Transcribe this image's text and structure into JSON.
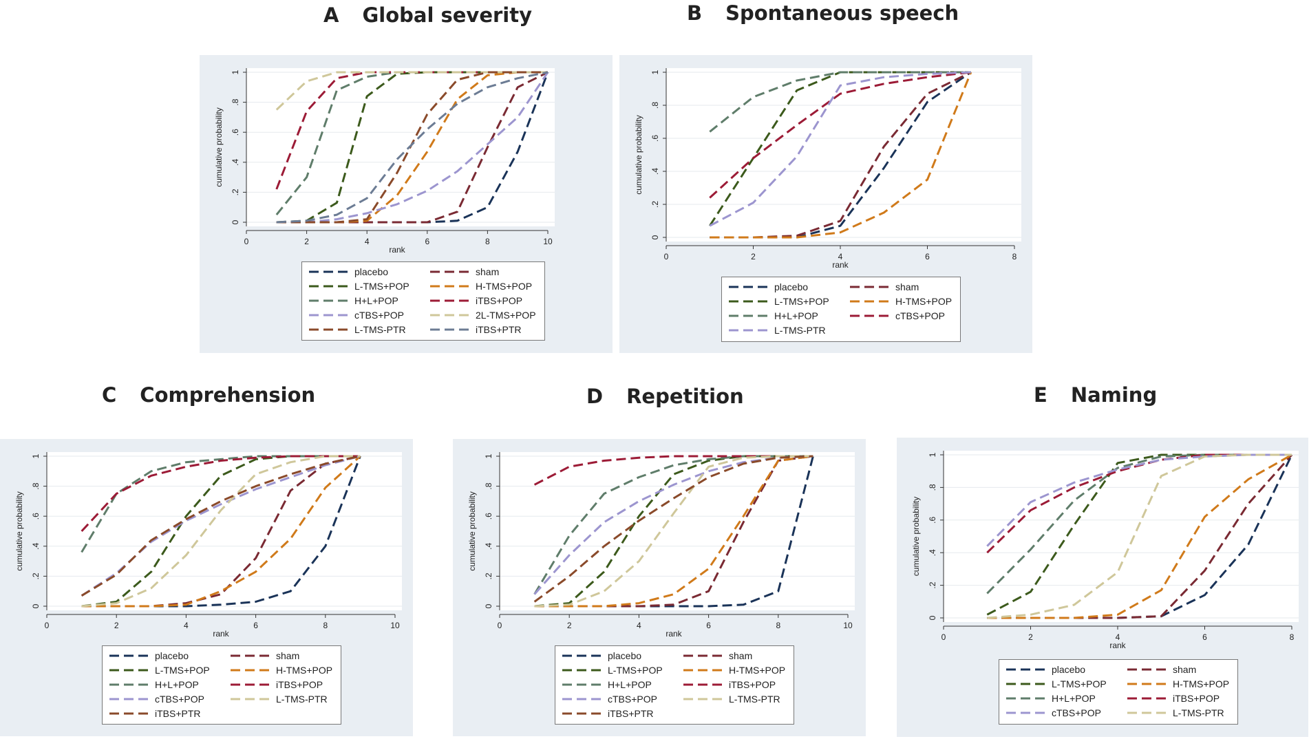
{
  "colors": {
    "placebo": "#1a3358",
    "sham": "#7a2a33",
    "L-TMS+POP": "#3c5a1c",
    "H-TMS+POP": "#d07a1a",
    "H+L+POP": "#5f7d6a",
    "iTBS+POP": "#9c1b36",
    "cTBS+POP": "#9c95cf",
    "2L-TMS+POP": "#cfc79a",
    "L-TMS-PTR": "#cfc79a",
    "iTBS+PTR": "#8a4a2a",
    "iTBS+PTR_A": "#6c7c94"
  },
  "chart_data": [
    {
      "id": "A",
      "type": "line",
      "letter": "A",
      "title": "Global severity",
      "xlabel": "rank",
      "ylabel": "cumulative probability",
      "xlim": [
        0,
        10
      ],
      "ylim": [
        0,
        1
      ],
      "xticks": [
        "0",
        "2",
        "4",
        "6",
        "8",
        "10"
      ],
      "yticks": [
        "0",
        ".2",
        ".4",
        ".6",
        ".8",
        "1"
      ],
      "x": [
        1,
        2,
        3,
        4,
        5,
        6,
        7,
        8,
        9,
        10
      ],
      "series": [
        {
          "name": "placebo",
          "color_key": "placebo",
          "values": [
            0,
            0,
            0,
            0,
            0,
            0,
            0.01,
            0.1,
            0.47,
            1
          ]
        },
        {
          "name": "sham",
          "color_key": "sham",
          "values": [
            0,
            0,
            0,
            0,
            0,
            0,
            0.07,
            0.5,
            0.9,
            1
          ]
        },
        {
          "name": "L-TMS+POP",
          "color_key": "L-TMS+POP",
          "values": [
            0,
            0.01,
            0.13,
            0.84,
            0.99,
            1,
            1,
            1,
            1,
            1
          ]
        },
        {
          "name": "H-TMS+POP",
          "color_key": "H-TMS+POP",
          "values": [
            0,
            0,
            0,
            0.01,
            0.18,
            0.47,
            0.82,
            0.98,
            1,
            1
          ]
        },
        {
          "name": "H+L+POP",
          "color_key": "H+L+POP",
          "values": [
            0.05,
            0.3,
            0.88,
            0.97,
            1,
            1,
            1,
            1,
            1,
            1
          ]
        },
        {
          "name": "iTBS+POP",
          "color_key": "iTBS+POP",
          "values": [
            0.22,
            0.74,
            0.96,
            1,
            1,
            1,
            1,
            1,
            1,
            1
          ]
        },
        {
          "name": "cTBS+POP",
          "color_key": "cTBS+POP",
          "values": [
            0,
            0,
            0.02,
            0.06,
            0.12,
            0.21,
            0.34,
            0.52,
            0.7,
            1
          ]
        },
        {
          "name": "2L-TMS+POP",
          "color_key": "2L-TMS+POP",
          "values": [
            0.75,
            0.94,
            1,
            1,
            1,
            1,
            1,
            1,
            1,
            1
          ]
        },
        {
          "name": "L-TMS-PTR",
          "color_key": "iTBS+PTR",
          "values": [
            0,
            0,
            0,
            0.02,
            0.33,
            0.72,
            0.95,
            1,
            1,
            1
          ]
        },
        {
          "name": "iTBS+PTR",
          "color_key": "iTBS+PTR_A",
          "values": [
            0,
            0.01,
            0.05,
            0.16,
            0.42,
            0.62,
            0.79,
            0.9,
            0.96,
            1
          ]
        }
      ],
      "legend": [
        "placebo",
        "sham",
        "L-TMS+POP",
        "H-TMS+POP",
        "H+L+POP",
        "iTBS+POP",
        "cTBS+POP",
        "2L-TMS+POP",
        "L-TMS-PTR",
        "iTBS+PTR"
      ]
    },
    {
      "id": "B",
      "type": "line",
      "letter": "B",
      "title": "Spontaneous speech",
      "xlabel": "rank",
      "ylabel": "cumulative probability",
      "xlim": [
        0,
        8
      ],
      "ylim": [
        0,
        1
      ],
      "xticks": [
        "0",
        "2",
        "4",
        "6",
        "8"
      ],
      "yticks": [
        "0",
        ".2",
        ".4",
        ".6",
        ".8",
        "1"
      ],
      "x": [
        1,
        2,
        3,
        4,
        5,
        6,
        7
      ],
      "series": [
        {
          "name": "placebo",
          "color_key": "placebo",
          "values": [
            0,
            0,
            0,
            0.07,
            0.42,
            0.82,
            1
          ]
        },
        {
          "name": "sham",
          "color_key": "sham",
          "values": [
            0,
            0,
            0.01,
            0.1,
            0.55,
            0.87,
            1
          ]
        },
        {
          "name": "L-TMS+POP",
          "color_key": "L-TMS+POP",
          "values": [
            0.07,
            0.48,
            0.89,
            1,
            1,
            1,
            1
          ]
        },
        {
          "name": "H-TMS+POP",
          "color_key": "H-TMS+POP",
          "values": [
            0,
            0,
            0,
            0.03,
            0.15,
            0.35,
            1
          ]
        },
        {
          "name": "H+L+POP",
          "color_key": "H+L+POP",
          "values": [
            0.64,
            0.85,
            0.95,
            1,
            1,
            1,
            1
          ]
        },
        {
          "name": "cTBS+POP",
          "color_key": "iTBS+POP",
          "values": [
            0.24,
            0.48,
            0.68,
            0.87,
            0.93,
            0.97,
            1
          ]
        },
        {
          "name": "L-TMS-PTR",
          "color_key": "cTBS+POP",
          "values": [
            0.07,
            0.21,
            0.49,
            0.92,
            0.97,
            0.99,
            1
          ]
        }
      ],
      "legend": [
        "placebo",
        "sham",
        "L-TMS+POP",
        "H-TMS+POP",
        "H+L+POP",
        "cTBS+POP",
        "L-TMS-PTR"
      ]
    },
    {
      "id": "C",
      "type": "line",
      "letter": "C",
      "title": "Comprehension",
      "xlabel": "rank",
      "ylabel": "cumulative probability",
      "xlim": [
        0,
        10
      ],
      "ylim": [
        0,
        1
      ],
      "xticks": [
        "0",
        "2",
        "4",
        "6",
        "8",
        "10"
      ],
      "yticks": [
        "0",
        ".2",
        ".4",
        ".6",
        ".8",
        "1"
      ],
      "x": [
        1,
        2,
        3,
        4,
        5,
        6,
        7,
        8,
        9
      ],
      "series": [
        {
          "name": "placebo",
          "color_key": "placebo",
          "values": [
            0,
            0,
            0,
            0,
            0.01,
            0.03,
            0.1,
            0.4,
            1
          ]
        },
        {
          "name": "sham",
          "color_key": "sham",
          "values": [
            0,
            0,
            0,
            0.02,
            0.08,
            0.32,
            0.77,
            0.95,
            1
          ]
        },
        {
          "name": "L-TMS+POP",
          "color_key": "L-TMS+POP",
          "values": [
            0,
            0.03,
            0.23,
            0.6,
            0.87,
            0.98,
            1,
            1,
            1
          ]
        },
        {
          "name": "H-TMS+POP",
          "color_key": "H-TMS+POP",
          "values": [
            0,
            0,
            0,
            0.01,
            0.1,
            0.23,
            0.45,
            0.79,
            1
          ]
        },
        {
          "name": "H+L+POP",
          "color_key": "H+L+POP",
          "values": [
            0.36,
            0.75,
            0.9,
            0.96,
            0.98,
            1,
            1,
            1,
            1
          ]
        },
        {
          "name": "iTBS+POP",
          "color_key": "iTBS+POP",
          "values": [
            0.5,
            0.75,
            0.87,
            0.93,
            0.97,
            0.99,
            1,
            1,
            1
          ]
        },
        {
          "name": "cTBS+POP",
          "color_key": "cTBS+POP",
          "values": [
            0.07,
            0.22,
            0.43,
            0.57,
            0.68,
            0.78,
            0.86,
            0.94,
            1
          ]
        },
        {
          "name": "L-TMS-PTR",
          "color_key": "L-TMS-PTR",
          "values": [
            0,
            0.02,
            0.12,
            0.34,
            0.64,
            0.88,
            0.96,
            1,
            1
          ]
        },
        {
          "name": "iTBS+PTR",
          "color_key": "iTBS+PTR",
          "values": [
            0.07,
            0.21,
            0.44,
            0.58,
            0.7,
            0.8,
            0.88,
            0.95,
            1
          ]
        }
      ],
      "legend": [
        "placebo",
        "sham",
        "L-TMS+POP",
        "H-TMS+POP",
        "H+L+POP",
        "iTBS+POP",
        "cTBS+POP",
        "L-TMS-PTR",
        "iTBS+PTR"
      ]
    },
    {
      "id": "D",
      "type": "line",
      "letter": "D",
      "title": "Repetition",
      "xlabel": "rank",
      "ylabel": "cumulative probability",
      "xlim": [
        0,
        10
      ],
      "ylim": [
        0,
        1
      ],
      "xticks": [
        "0",
        "2",
        "4",
        "6",
        "8",
        "10"
      ],
      "yticks": [
        "0",
        ".2",
        ".4",
        ".6",
        ".8",
        "1"
      ],
      "x": [
        1,
        2,
        3,
        4,
        5,
        6,
        7,
        8,
        9
      ],
      "series": [
        {
          "name": "placebo",
          "color_key": "placebo",
          "values": [
            0,
            0,
            0,
            0,
            0,
            0,
            0.01,
            0.1,
            1
          ]
        },
        {
          "name": "sham",
          "color_key": "sham",
          "values": [
            0,
            0,
            0,
            0,
            0.01,
            0.1,
            0.56,
            0.97,
            1
          ]
        },
        {
          "name": "L-TMS+POP",
          "color_key": "L-TMS+POP",
          "values": [
            0,
            0.02,
            0.23,
            0.6,
            0.88,
            0.97,
            1,
            1,
            1
          ]
        },
        {
          "name": "H-TMS+POP",
          "color_key": "H-TMS+POP",
          "values": [
            0,
            0,
            0,
            0.02,
            0.08,
            0.25,
            0.6,
            0.97,
            1
          ]
        },
        {
          "name": "H+L+POP",
          "color_key": "H+L+POP",
          "values": [
            0.08,
            0.47,
            0.75,
            0.86,
            0.94,
            0.98,
            1,
            1,
            1
          ]
        },
        {
          "name": "iTBS+POP",
          "color_key": "iTBS+POP",
          "values": [
            0.81,
            0.93,
            0.97,
            0.99,
            1,
            1,
            1,
            1,
            1
          ]
        },
        {
          "name": "cTBS+POP",
          "color_key": "cTBS+POP",
          "values": [
            0.08,
            0.34,
            0.56,
            0.7,
            0.81,
            0.9,
            0.96,
            0.99,
            1
          ]
        },
        {
          "name": "L-TMS-PTR",
          "color_key": "L-TMS-PTR",
          "values": [
            0,
            0.01,
            0.1,
            0.3,
            0.62,
            0.93,
            0.99,
            1,
            1
          ]
        },
        {
          "name": "iTBS+PTR",
          "color_key": "iTBS+PTR",
          "values": [
            0.03,
            0.2,
            0.4,
            0.57,
            0.72,
            0.86,
            0.95,
            0.99,
            1
          ]
        }
      ],
      "legend": [
        "placebo",
        "sham",
        "L-TMS+POP",
        "H-TMS+POP",
        "H+L+POP",
        "iTBS+POP",
        "cTBS+POP",
        "L-TMS-PTR",
        "iTBS+PTR"
      ]
    },
    {
      "id": "E",
      "type": "line",
      "letter": "E",
      "title": "Naming",
      "xlabel": "rank",
      "ylabel": "cumulative probability",
      "xlim": [
        0,
        8
      ],
      "ylim": [
        0,
        1
      ],
      "xticks": [
        "0",
        "2",
        "4",
        "6",
        "8"
      ],
      "yticks": [
        "0",
        ".2",
        ".4",
        ".6",
        ".8",
        "1"
      ],
      "x": [
        1,
        2,
        3,
        4,
        5,
        6,
        7,
        8
      ],
      "series": [
        {
          "name": "placebo",
          "color_key": "placebo",
          "values": [
            0,
            0,
            0,
            0,
            0.01,
            0.14,
            0.45,
            1
          ]
        },
        {
          "name": "sham",
          "color_key": "sham",
          "values": [
            0,
            0,
            0,
            0,
            0.01,
            0.29,
            0.7,
            1
          ]
        },
        {
          "name": "L-TMS+POP",
          "color_key": "L-TMS+POP",
          "values": [
            0.02,
            0.16,
            0.57,
            0.95,
            1,
            1,
            1,
            1
          ]
        },
        {
          "name": "H-TMS+POP",
          "color_key": "H-TMS+POP",
          "values": [
            0,
            0,
            0,
            0.02,
            0.17,
            0.62,
            0.85,
            1
          ]
        },
        {
          "name": "H+L+POP",
          "color_key": "H+L+POP",
          "values": [
            0.15,
            0.42,
            0.72,
            0.92,
            0.99,
            1,
            1,
            1
          ]
        },
        {
          "name": "iTBS+POP",
          "color_key": "iTBS+POP",
          "values": [
            0.4,
            0.66,
            0.8,
            0.9,
            0.97,
            1,
            1,
            1
          ]
        },
        {
          "name": "cTBS+POP",
          "color_key": "cTBS+POP",
          "values": [
            0.44,
            0.71,
            0.83,
            0.91,
            0.97,
            0.99,
            1,
            1
          ]
        },
        {
          "name": "L-TMS-PTR",
          "color_key": "L-TMS-PTR",
          "values": [
            0,
            0.02,
            0.08,
            0.28,
            0.87,
            0.99,
            1,
            1
          ]
        }
      ],
      "legend": [
        "placebo",
        "sham",
        "L-TMS+POP",
        "H-TMS+POP",
        "H+L+POP",
        "iTBS+POP",
        "cTBS+POP",
        "L-TMS-PTR"
      ]
    }
  ]
}
